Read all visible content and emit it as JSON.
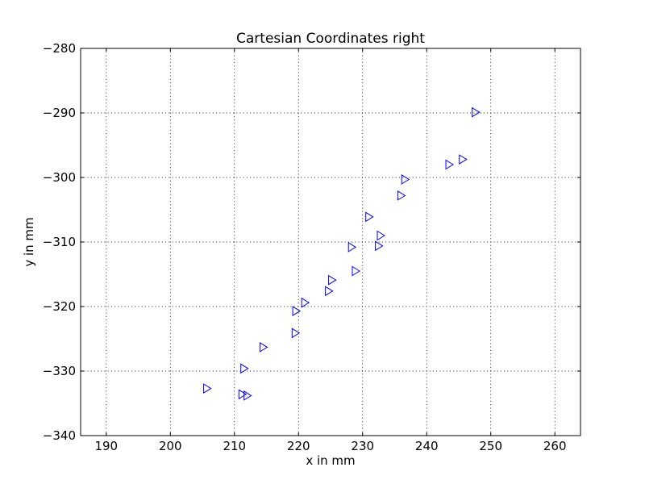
{
  "chart_data": {
    "type": "scatter",
    "title": "Cartesian Coordinates right",
    "xlabel": "x in mm",
    "ylabel": "y in mm",
    "xlim": [
      186,
      264
    ],
    "ylim": [
      -340,
      -280
    ],
    "xticks": [
      190,
      200,
      210,
      220,
      230,
      240,
      250,
      260
    ],
    "yticks": [
      -340,
      -330,
      -320,
      -310,
      -300,
      -290,
      -280
    ],
    "grid": true,
    "marker": "triangle-right",
    "marker_color": "#0000ff",
    "series": [
      {
        "points": [
          {
            "x": 247.6,
            "y": -289.9
          },
          {
            "x": 245.6,
            "y": -297.2
          },
          {
            "x": 243.5,
            "y": -298.0
          },
          {
            "x": 236.6,
            "y": -300.3
          },
          {
            "x": 236.0,
            "y": -302.8
          },
          {
            "x": 231.0,
            "y": -306.1
          },
          {
            "x": 232.8,
            "y": -309.0
          },
          {
            "x": 232.5,
            "y": -310.6
          },
          {
            "x": 228.3,
            "y": -310.8
          },
          {
            "x": 228.9,
            "y": -314.5
          },
          {
            "x": 225.2,
            "y": -315.9
          },
          {
            "x": 224.7,
            "y": -317.6
          },
          {
            "x": 221.0,
            "y": -319.4
          },
          {
            "x": 219.6,
            "y": -320.7
          },
          {
            "x": 219.5,
            "y": -324.1
          },
          {
            "x": 214.5,
            "y": -326.3
          },
          {
            "x": 211.5,
            "y": -329.6
          },
          {
            "x": 205.7,
            "y": -332.7
          },
          {
            "x": 211.2,
            "y": -333.6
          },
          {
            "x": 212.0,
            "y": -333.8
          }
        ]
      }
    ]
  }
}
